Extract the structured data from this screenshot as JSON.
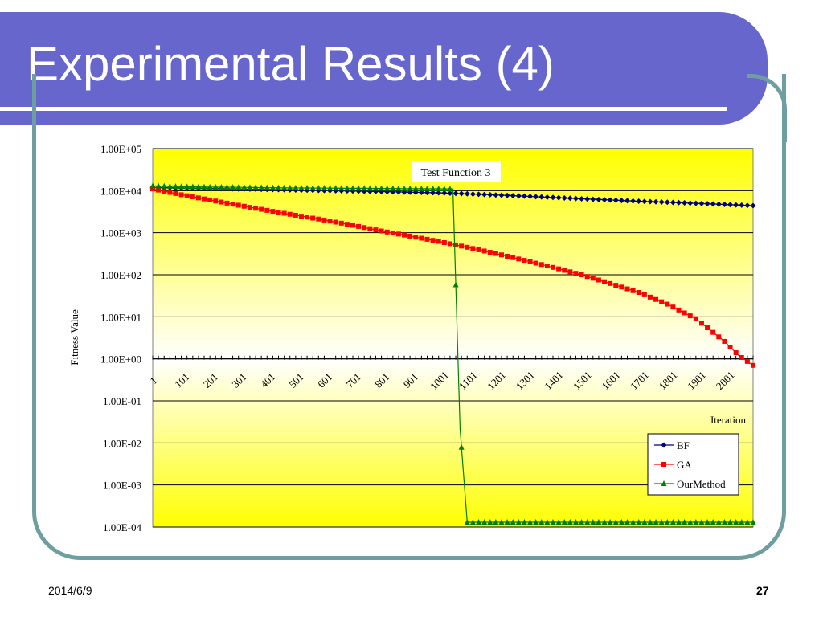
{
  "slide": {
    "title": "Experimental Results (4)",
    "date": "2014/6/9",
    "page_number": "27"
  },
  "colors": {
    "title_band": "#6666cc",
    "frame": "#6f9ea1",
    "plot_fill_top": "#ffffc0",
    "plot_fill_edge": "#ffff00",
    "BF": "#000080",
    "GA": "#ff0000",
    "OurMethod": "#008000"
  },
  "chart_data": {
    "type": "line",
    "title": "Test Function 3",
    "xlabel": "Iteration",
    "ylabel": "Fitness Value",
    "y_scale": "log",
    "ylim": [
      0.0001,
      100000
    ],
    "xlim": [
      1,
      2101
    ],
    "y_tick_labels": [
      "1.00E+05",
      "1.00E+04",
      "1.00E+03",
      "1.00E+02",
      "1.00E+01",
      "1.00E+00",
      "1.00E-01",
      "1.00E-02",
      "1.00E-03",
      "1.00E-04"
    ],
    "x_tick_labels": [
      "1",
      "101",
      "201",
      "301",
      "401",
      "501",
      "601",
      "701",
      "801",
      "901",
      "1001",
      "1101",
      "1201",
      "1301",
      "1401",
      "1501",
      "1601",
      "1701",
      "1801",
      "1901",
      "2001"
    ],
    "legend_position": "bottom-right",
    "grid": "horizontal",
    "series": [
      {
        "name": "BF",
        "marker": "diamond",
        "x": [
          1,
          101,
          201,
          301,
          401,
          501,
          601,
          701,
          801,
          901,
          1001,
          1101,
          1201,
          1301,
          1401,
          1501,
          1601,
          1701,
          1801,
          1901,
          2001,
          2101
        ],
        "y": [
          12000,
          11600,
          11300,
          11000,
          10700,
          10400,
          10100,
          9800,
          9500,
          9200,
          8900,
          8400,
          7900,
          7400,
          6900,
          6400,
          6000,
          5600,
          5300,
          5000,
          4700,
          4400
        ]
      },
      {
        "name": "GA",
        "marker": "square",
        "x": [
          1,
          101,
          201,
          301,
          401,
          501,
          601,
          701,
          801,
          901,
          1001,
          1101,
          1201,
          1301,
          1401,
          1501,
          1601,
          1701,
          1801,
          1901,
          2001,
          2051,
          2101
        ],
        "y": [
          11000,
          8000,
          6000,
          4500,
          3400,
          2600,
          2000,
          1500,
          1100,
          830,
          620,
          450,
          320,
          220,
          150,
          100,
          62,
          38,
          20,
          9,
          2.6,
          1.2,
          0.7
        ]
      },
      {
        "name": "OurMethod",
        "marker": "triangle",
        "x": [
          1,
          101,
          201,
          301,
          401,
          501,
          601,
          701,
          801,
          901,
          1001,
          1051,
          1076,
          1101,
          1151,
          1201,
          1301,
          1401,
          1501,
          1601,
          1701,
          1801,
          1901,
          2001,
          2101
        ],
        "y": [
          13000,
          12500,
          12200,
          12000,
          11800,
          11600,
          11500,
          11400,
          11300,
          11200,
          11100,
          11000,
          0.022,
          0.00013,
          0.00013,
          0.00013,
          0.00013,
          0.00013,
          0.00013,
          0.00013,
          0.00013,
          0.00013,
          0.00013,
          0.00013,
          0.00013
        ]
      }
    ]
  }
}
